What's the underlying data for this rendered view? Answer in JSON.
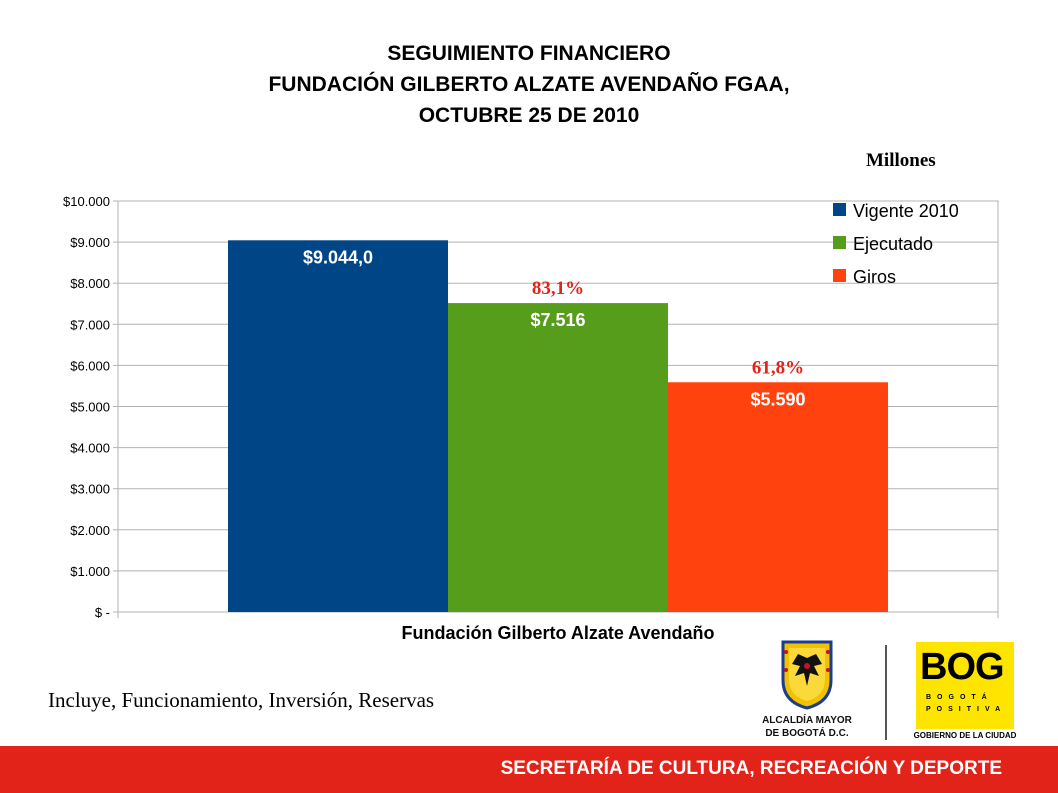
{
  "title": {
    "line1": "SEGUIMIENTO FINANCIERO",
    "line2": "FUNDACIÓN GILBERTO ALZATE AVENDAÑO FGAA,",
    "line3": "OCTUBRE 25 DE 2010"
  },
  "unit_label": "Millones",
  "chart_data": {
    "type": "bar",
    "categories": [
      "Fundación Gilberto Alzate Avendaño"
    ],
    "xlabel": "Fundación Gilberto Alzate Avendaño",
    "ylim": [
      0,
      10000
    ],
    "yticks": [
      {
        "value": 10000,
        "label": "$10.000"
      },
      {
        "value": 9000,
        "label": "$9.000"
      },
      {
        "value": 8000,
        "label": "$8.000"
      },
      {
        "value": 7000,
        "label": "$7.000"
      },
      {
        "value": 6000,
        "label": "$6.000"
      },
      {
        "value": 5000,
        "label": "$5.000"
      },
      {
        "value": 4000,
        "label": "$4.000"
      },
      {
        "value": 3000,
        "label": "$3.000"
      },
      {
        "value": 2000,
        "label": "$2.000"
      },
      {
        "value": 1000,
        "label": "$1.000"
      },
      {
        "value": 0,
        "label": "$ -"
      }
    ],
    "grid": true,
    "legend_position": "top-right",
    "series": [
      {
        "name": "Vigente 2010",
        "values": [
          9044.0
        ],
        "label": "$9.044,0",
        "color": "#004586",
        "annotation": ""
      },
      {
        "name": "Ejecutado",
        "values": [
          7516
        ],
        "label": "$7.516",
        "color": "#579d1c",
        "annotation": "83,1%"
      },
      {
        "name": "Giros",
        "values": [
          5590
        ],
        "label": "$5.590",
        "color": "#ff420e",
        "annotation": "61,8%"
      }
    ]
  },
  "note": "Incluye, Funcionamiento, Inversión, Reservas",
  "logos": {
    "alcaldia_line1": "ALCALDÍA MAYOR",
    "alcaldia_line2": "DE BOGOTÁ D.C.",
    "bog_mark": "BOG",
    "bog_line1": "BOGOTÁ",
    "bog_line2": "POSITIVA",
    "gobierno": "GOBIERNO DE LA CIUDAD"
  },
  "footer": "SECRETARÍA DE CULTURA, RECREACIÓN Y DEPORTE",
  "colors": {
    "footer": "#e2231a",
    "annotation": "#e2231a",
    "bog_yellow": "#fde500"
  }
}
